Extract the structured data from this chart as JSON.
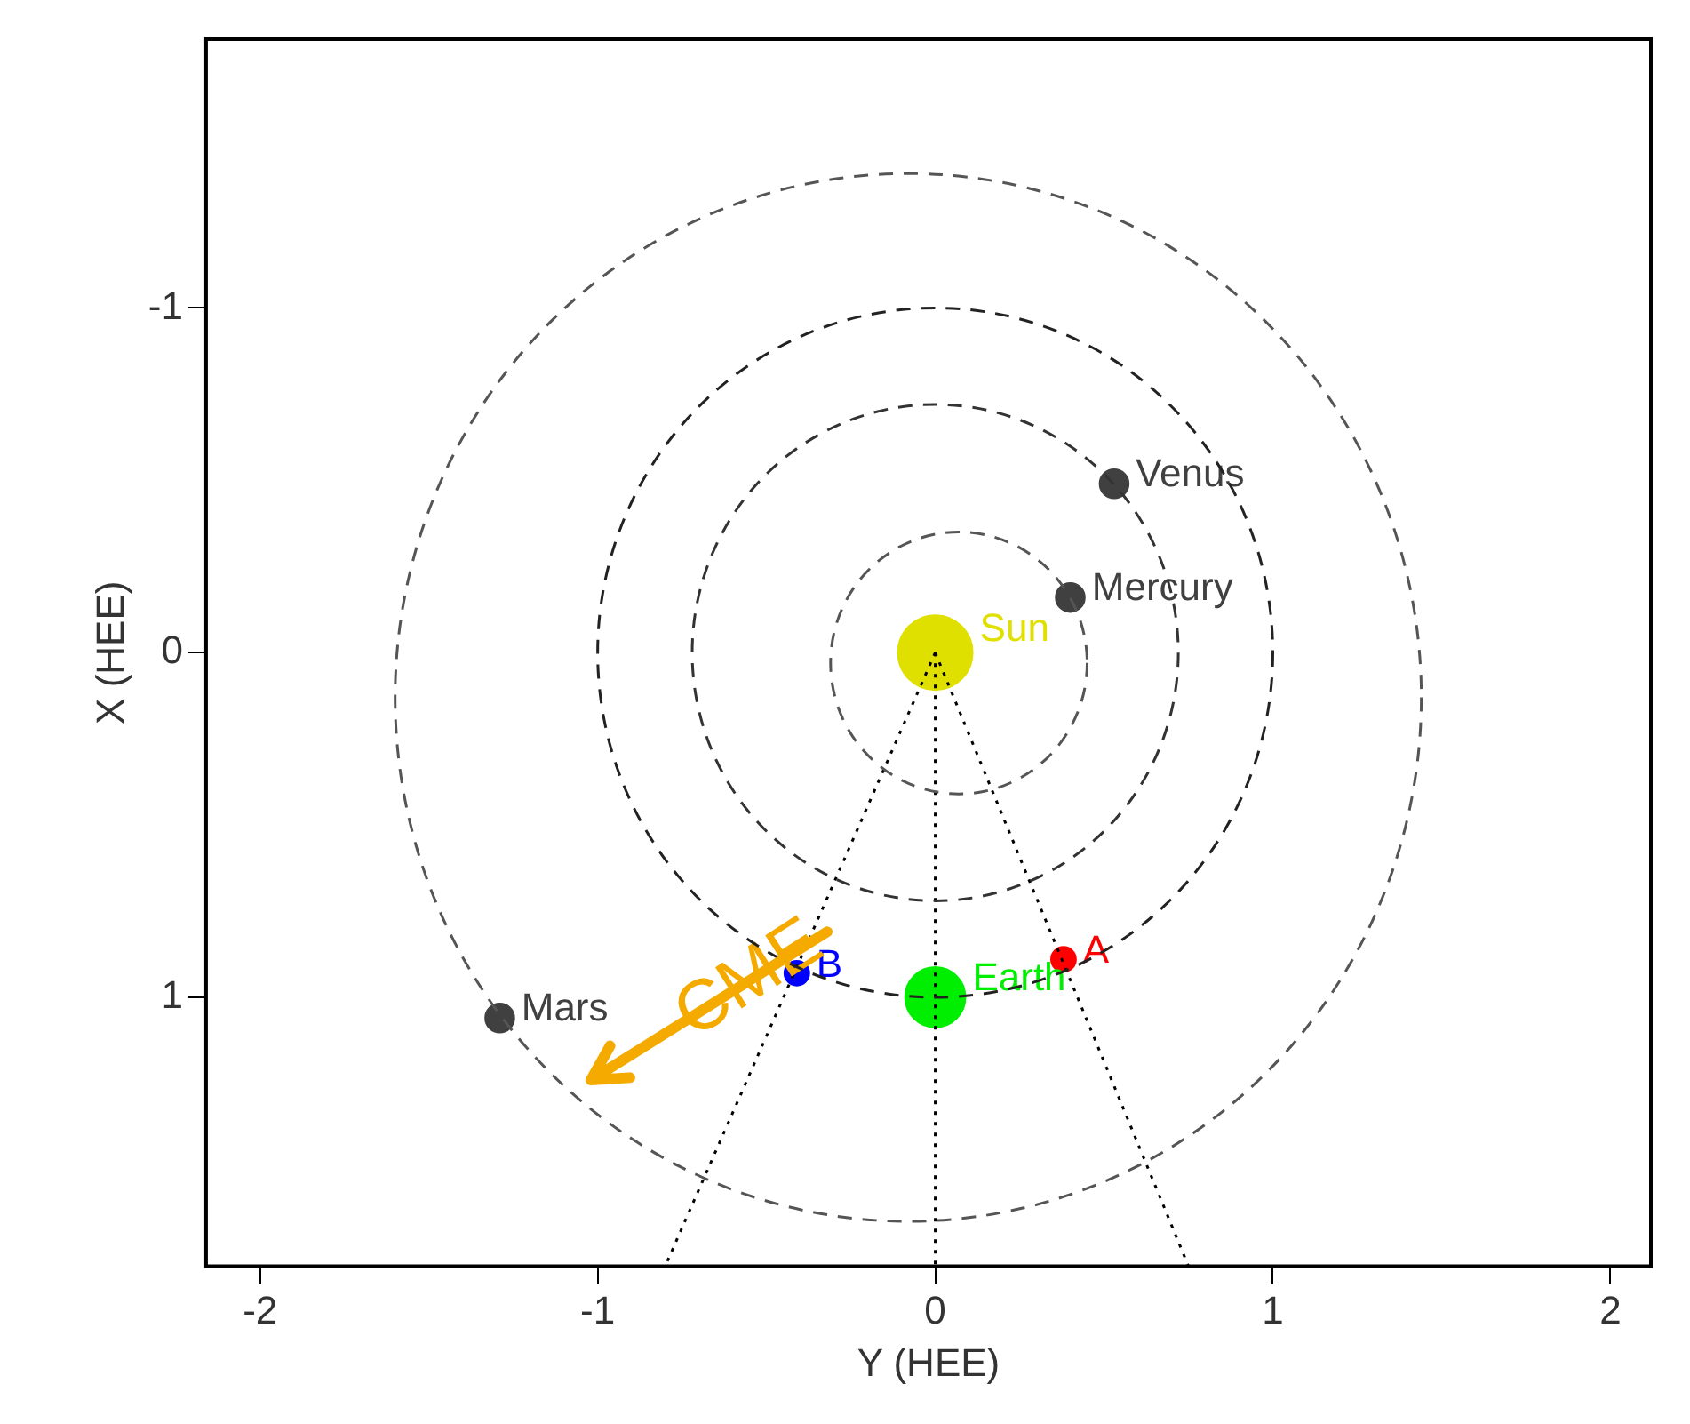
{
  "chart_data": {
    "type": "scatter",
    "xlabel": "Y (HEE)",
    "ylabel": "X (HEE)",
    "xlim": [
      -2.16,
      2.12
    ],
    "xticks": [
      -2,
      -1,
      0,
      1,
      2
    ],
    "ylim": [
      1.78,
      -1.78
    ],
    "yticks": [
      -1,
      0,
      1
    ],
    "grid": false,
    "legend": false,
    "marker": "circle",
    "annotations": [
      "CME"
    ],
    "series": [
      {
        "type": "line",
        "line_style": "dotted",
        "color": "#000000",
        "x": [
          0,
          -0.8
        ],
        "values": [
          0,
          1.78
        ]
      },
      {
        "type": "line",
        "line_style": "dotted",
        "color": "#000000",
        "x": [
          0,
          0
        ],
        "values": [
          0,
          1.78
        ]
      },
      {
        "type": "line",
        "marker": "none",
        "line_style": "dotted",
        "color": "#000000",
        "x": [
          0,
          0.75
        ],
        "values": [
          0,
          1.78
        ]
      },
      {
        "type": "bubble",
        "name": "Sun",
        "color": "#e0e000",
        "x": [
          0
        ],
        "values": [
          0
        ],
        "sizes": [
          1
        ]
      },
      {
        "type": "bubble",
        "name": "Mercury",
        "color": "#404040",
        "x": [
          0.4
        ],
        "values": [
          -0.16
        ],
        "sizes": [
          0.15
        ]
      },
      {
        "type": "bubble",
        "name": "Venus",
        "color": "#404040",
        "x": [
          0.53
        ],
        "values": [
          -0.49
        ],
        "sizes": [
          0.15
        ]
      },
      {
        "type": "bubble",
        "name": "Earth",
        "color": "#00ee00",
        "x": [
          0
        ],
        "values": [
          1.0
        ],
        "sizes": [
          0.65
        ]
      },
      {
        "type": "bubble",
        "name": "Mars",
        "color": "#404040",
        "x": [
          -1.29
        ],
        "values": [
          1.06
        ],
        "sizes": [
          0.15
        ]
      },
      {
        "type": "bubble",
        "name": "A",
        "color": "#ff0000",
        "x": [
          0.38
        ],
        "values": [
          0.89
        ],
        "sizes": [
          0.11
        ]
      },
      {
        "type": "bubble",
        "name": "B",
        "color": "#0000ff",
        "x": [
          -0.41
        ],
        "values": [
          0.93
        ],
        "sizes": [
          0.11
        ]
      }
    ]
  }
}
